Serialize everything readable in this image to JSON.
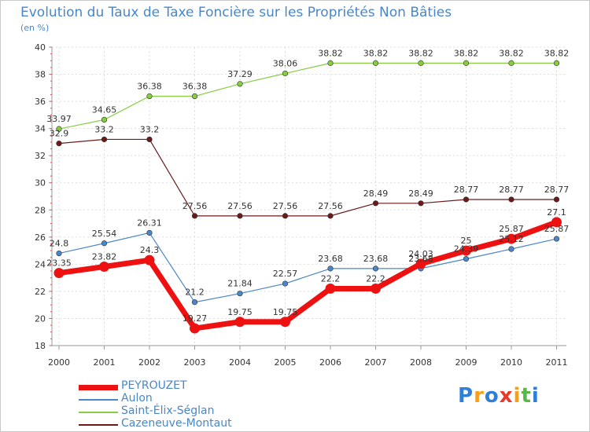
{
  "chart_data": {
    "type": "line",
    "title": "Evolution du Taux de Taxe Foncière sur les Propriétés Non Bâties",
    "subtitle": "(en %)",
    "xlabel": "",
    "ylabel": "",
    "ylim": [
      18,
      40
    ],
    "yticks": [
      18,
      20,
      22,
      24,
      26,
      28,
      30,
      32,
      34,
      36,
      38,
      40
    ],
    "grid": true,
    "legend_position": "bottom-left",
    "categories": [
      "2000",
      "2001",
      "2002",
      "2003",
      "2004",
      "2005",
      "2006",
      "2007",
      "2008",
      "2009",
      "2010",
      "2011"
    ],
    "series": [
      {
        "name": "PEYROUZET",
        "color": "#ee1111",
        "values": [
          23.35,
          23.82,
          24.3,
          19.27,
          19.75,
          19.75,
          22.2,
          22.2,
          24.03,
          25,
          25.87,
          27.1
        ],
        "labels": [
          "23.35",
          "23.82",
          "24.3",
          "19.27",
          "19.75",
          "19.75",
          "22.2",
          "22.2",
          "24.03",
          "25",
          "25.87",
          "27.1"
        ]
      },
      {
        "name": "Aulon",
        "color": "#4a86c8",
        "values": [
          24.8,
          25.54,
          26.31,
          21.2,
          21.84,
          22.57,
          23.68,
          23.68,
          23.68,
          24.39,
          25.12,
          25.87
        ],
        "labels": [
          "24.8",
          "25.54",
          "26.31",
          "21.2",
          "21.84",
          "22.57",
          "23.68",
          "23.68",
          "23.68",
          "24.39",
          "25.12",
          "25.87"
        ]
      },
      {
        "name": "Saint-Élix-Séglan",
        "color": "#88cc44",
        "values": [
          33.97,
          34.65,
          36.38,
          36.38,
          37.29,
          38.06,
          38.82,
          38.82,
          38.82,
          38.82,
          38.82,
          38.82
        ],
        "labels": [
          "33.97",
          "34.65",
          "36.38",
          "36.38",
          "37.29",
          "38.06",
          "38.82",
          "38.82",
          "38.82",
          "38.82",
          "38.82",
          "38.82"
        ]
      },
      {
        "name": "Cazeneuve-Montaut",
        "color": "#6b1a1a",
        "values": [
          32.9,
          33.2,
          33.2,
          27.56,
          27.56,
          27.56,
          27.56,
          28.49,
          28.49,
          28.77,
          28.77,
          28.77
        ],
        "labels": [
          "32.9",
          "33.2",
          "33.2",
          "27.56",
          "27.56",
          "27.56",
          "27.56",
          "28.49",
          "28.49",
          "28.77",
          "28.77",
          "28.77"
        ]
      }
    ]
  },
  "logo": {
    "text": "Proxiti",
    "colors": [
      "#2e7fd6",
      "#f5a01a",
      "#2e7fd6",
      "#e8392a",
      "#f5a01a",
      "#58b848",
      "#2e7fd6"
    ]
  }
}
